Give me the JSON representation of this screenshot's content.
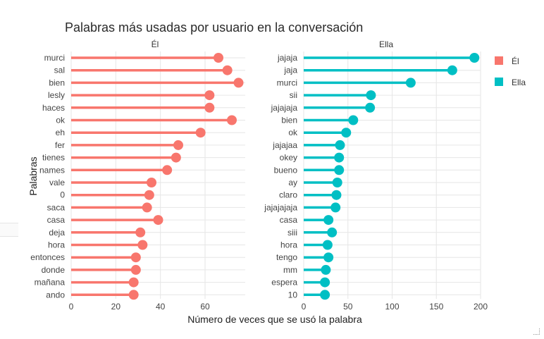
{
  "chart_data": {
    "type": "lollipop",
    "title": "Palabras más usadas por usuario en la conversación",
    "xlabel": "Número de veces que se usó la palabra",
    "ylabel": "Palabras",
    "legend": {
      "placement": "right",
      "entries": [
        {
          "name": "Él",
          "color": "#f8766d"
        },
        {
          "name": "Ella",
          "color": "#00bfc4"
        }
      ]
    },
    "grid": true,
    "panels": [
      {
        "facet": "Él",
        "color": "#f8766d",
        "xlim": [
          0,
          78
        ],
        "xticks": [
          0,
          20,
          40,
          60
        ],
        "categories": [
          "murci",
          "sal",
          "bien",
          "lesly",
          "haces",
          "ok",
          "eh",
          "fer",
          "tienes",
          "names",
          "vale",
          "0",
          "saca",
          "casa",
          "deja",
          "hora",
          "entonces",
          "donde",
          "mañana",
          "ando"
        ],
        "values": [
          66,
          70,
          75,
          62,
          62,
          72,
          58,
          48,
          47,
          43,
          36,
          35,
          34,
          39,
          31,
          32,
          29,
          29,
          28,
          28
        ]
      },
      {
        "facet": "Ella",
        "color": "#00bfc4",
        "xlim": [
          0,
          200
        ],
        "xticks": [
          0,
          50,
          100,
          150,
          200
        ],
        "categories": [
          "jajaja",
          "jaja",
          "murci",
          "sii",
          "jajajaja",
          "bien",
          "ok",
          "jajajaa",
          "okey",
          "bueno",
          "ay",
          "claro",
          "jajajajaja",
          "casa",
          "siii",
          "hora",
          "tengo",
          "mm",
          "espera",
          "10"
        ],
        "values": [
          193,
          168,
          121,
          76,
          75,
          56,
          48,
          41,
          40,
          40,
          38,
          37,
          36,
          28,
          32,
          27,
          28,
          25,
          24,
          24
        ]
      }
    ]
  }
}
